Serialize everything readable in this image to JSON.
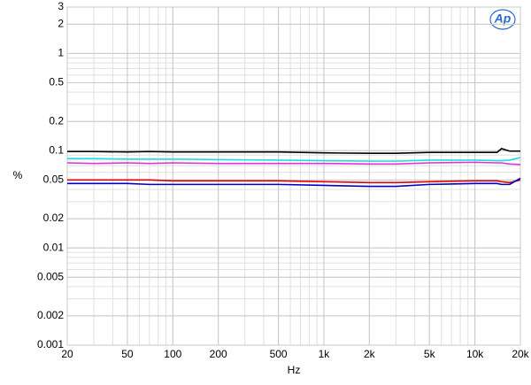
{
  "chart_data": {
    "type": "line",
    "logo_text": "Ap",
    "xlabel": "Hz",
    "ylabel": "%",
    "log_x": true,
    "log_y": true,
    "grid": true,
    "xlim": [
      20,
      20000
    ],
    "ylim": [
      0.001,
      3
    ],
    "xticks": [
      20,
      50,
      100,
      200,
      500,
      {
        "value": 1000,
        "label": "1k"
      },
      {
        "value": 2000,
        "label": "2k"
      },
      {
        "value": 5000,
        "label": "5k"
      },
      {
        "value": 10000,
        "label": "10k"
      },
      {
        "value": 20000,
        "label": "20k"
      }
    ],
    "yticks": [
      0.001,
      0.002,
      0.005,
      0.01,
      0.02,
      0.05,
      0.1,
      0.2,
      0.5,
      1,
      2,
      3
    ],
    "x": [
      20,
      30,
      50,
      70,
      100,
      200,
      500,
      1000,
      2000,
      3000,
      5000,
      10000,
      14000,
      15000,
      17000,
      20000
    ],
    "series": [
      {
        "color": "#000000",
        "values": [
          0.098,
          0.098,
          0.097,
          0.098,
          0.097,
          0.097,
          0.097,
          0.095,
          0.094,
          0.094,
          0.096,
          0.096,
          0.096,
          0.105,
          0.099,
          0.099
        ]
      },
      {
        "color": "#22dddd",
        "values": [
          0.083,
          0.083,
          0.082,
          0.082,
          0.082,
          0.081,
          0.08,
          0.079,
          0.078,
          0.078,
          0.08,
          0.08,
          0.079,
          0.079,
          0.08,
          0.085
        ]
      },
      {
        "color": "#dd33dd",
        "values": [
          0.075,
          0.074,
          0.075,
          0.074,
          0.075,
          0.074,
          0.074,
          0.074,
          0.073,
          0.073,
          0.075,
          0.076,
          0.075,
          0.075,
          0.073,
          0.072
        ]
      },
      {
        "color": "#dd0000",
        "values": [
          0.05,
          0.05,
          0.05,
          0.05,
          0.049,
          0.049,
          0.049,
          0.048,
          0.047,
          0.047,
          0.048,
          0.049,
          0.049,
          0.048,
          0.047,
          0.05
        ]
      },
      {
        "color": "#0000cc",
        "values": [
          0.046,
          0.046,
          0.046,
          0.045,
          0.045,
          0.045,
          0.045,
          0.044,
          0.043,
          0.043,
          0.045,
          0.046,
          0.046,
          0.045,
          0.045,
          0.052
        ]
      }
    ]
  }
}
